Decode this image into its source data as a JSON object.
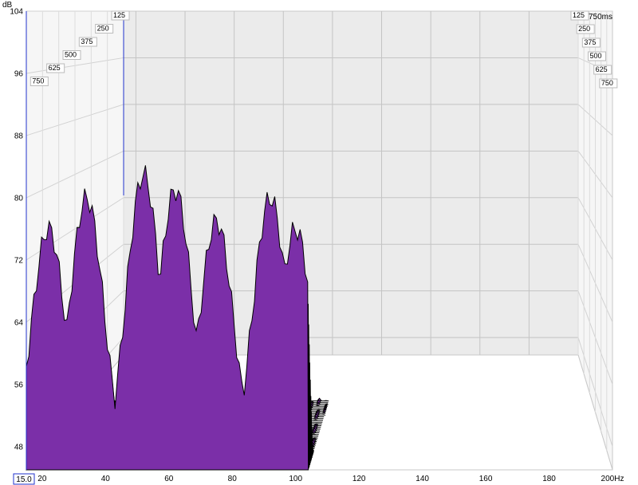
{
  "chart_data": {
    "type": "waterfall",
    "y_unit": "dB",
    "x_unit_suffix": "Hz",
    "y_ticks": [
      "104",
      "96",
      "88",
      "80",
      "72",
      "64",
      "56",
      "48"
    ],
    "x_ticks": [
      "20",
      "40",
      "60",
      "80",
      "100",
      "120",
      "140",
      "160",
      "180",
      "200Hz"
    ],
    "x_min_readout": "15.0",
    "time_labels_left": [
      "125",
      "250",
      "375",
      "500",
      "625",
      "750"
    ],
    "time_labels_right": [
      "125",
      "250",
      "375",
      "500",
      "625",
      "750"
    ],
    "time_unit_label": "750ms",
    "xlim": [
      15,
      200
    ],
    "ylim": [
      45,
      104
    ],
    "time_range_ms": [
      0,
      750
    ],
    "slice_count": 40,
    "data_x_max": 104,
    "peaks": [
      {
        "freq": 22,
        "db": 76
      },
      {
        "freq": 34,
        "db": 80
      },
      {
        "freq": 52,
        "db": 83
      },
      {
        "freq": 62,
        "db": 81
      },
      {
        "freq": 75,
        "db": 77
      },
      {
        "freq": 92,
        "db": 80
      },
      {
        "freq": 100,
        "db": 76
      }
    ],
    "fill_color": "#7b2fa8",
    "cursor_color": "#2233cc",
    "grid": true
  }
}
